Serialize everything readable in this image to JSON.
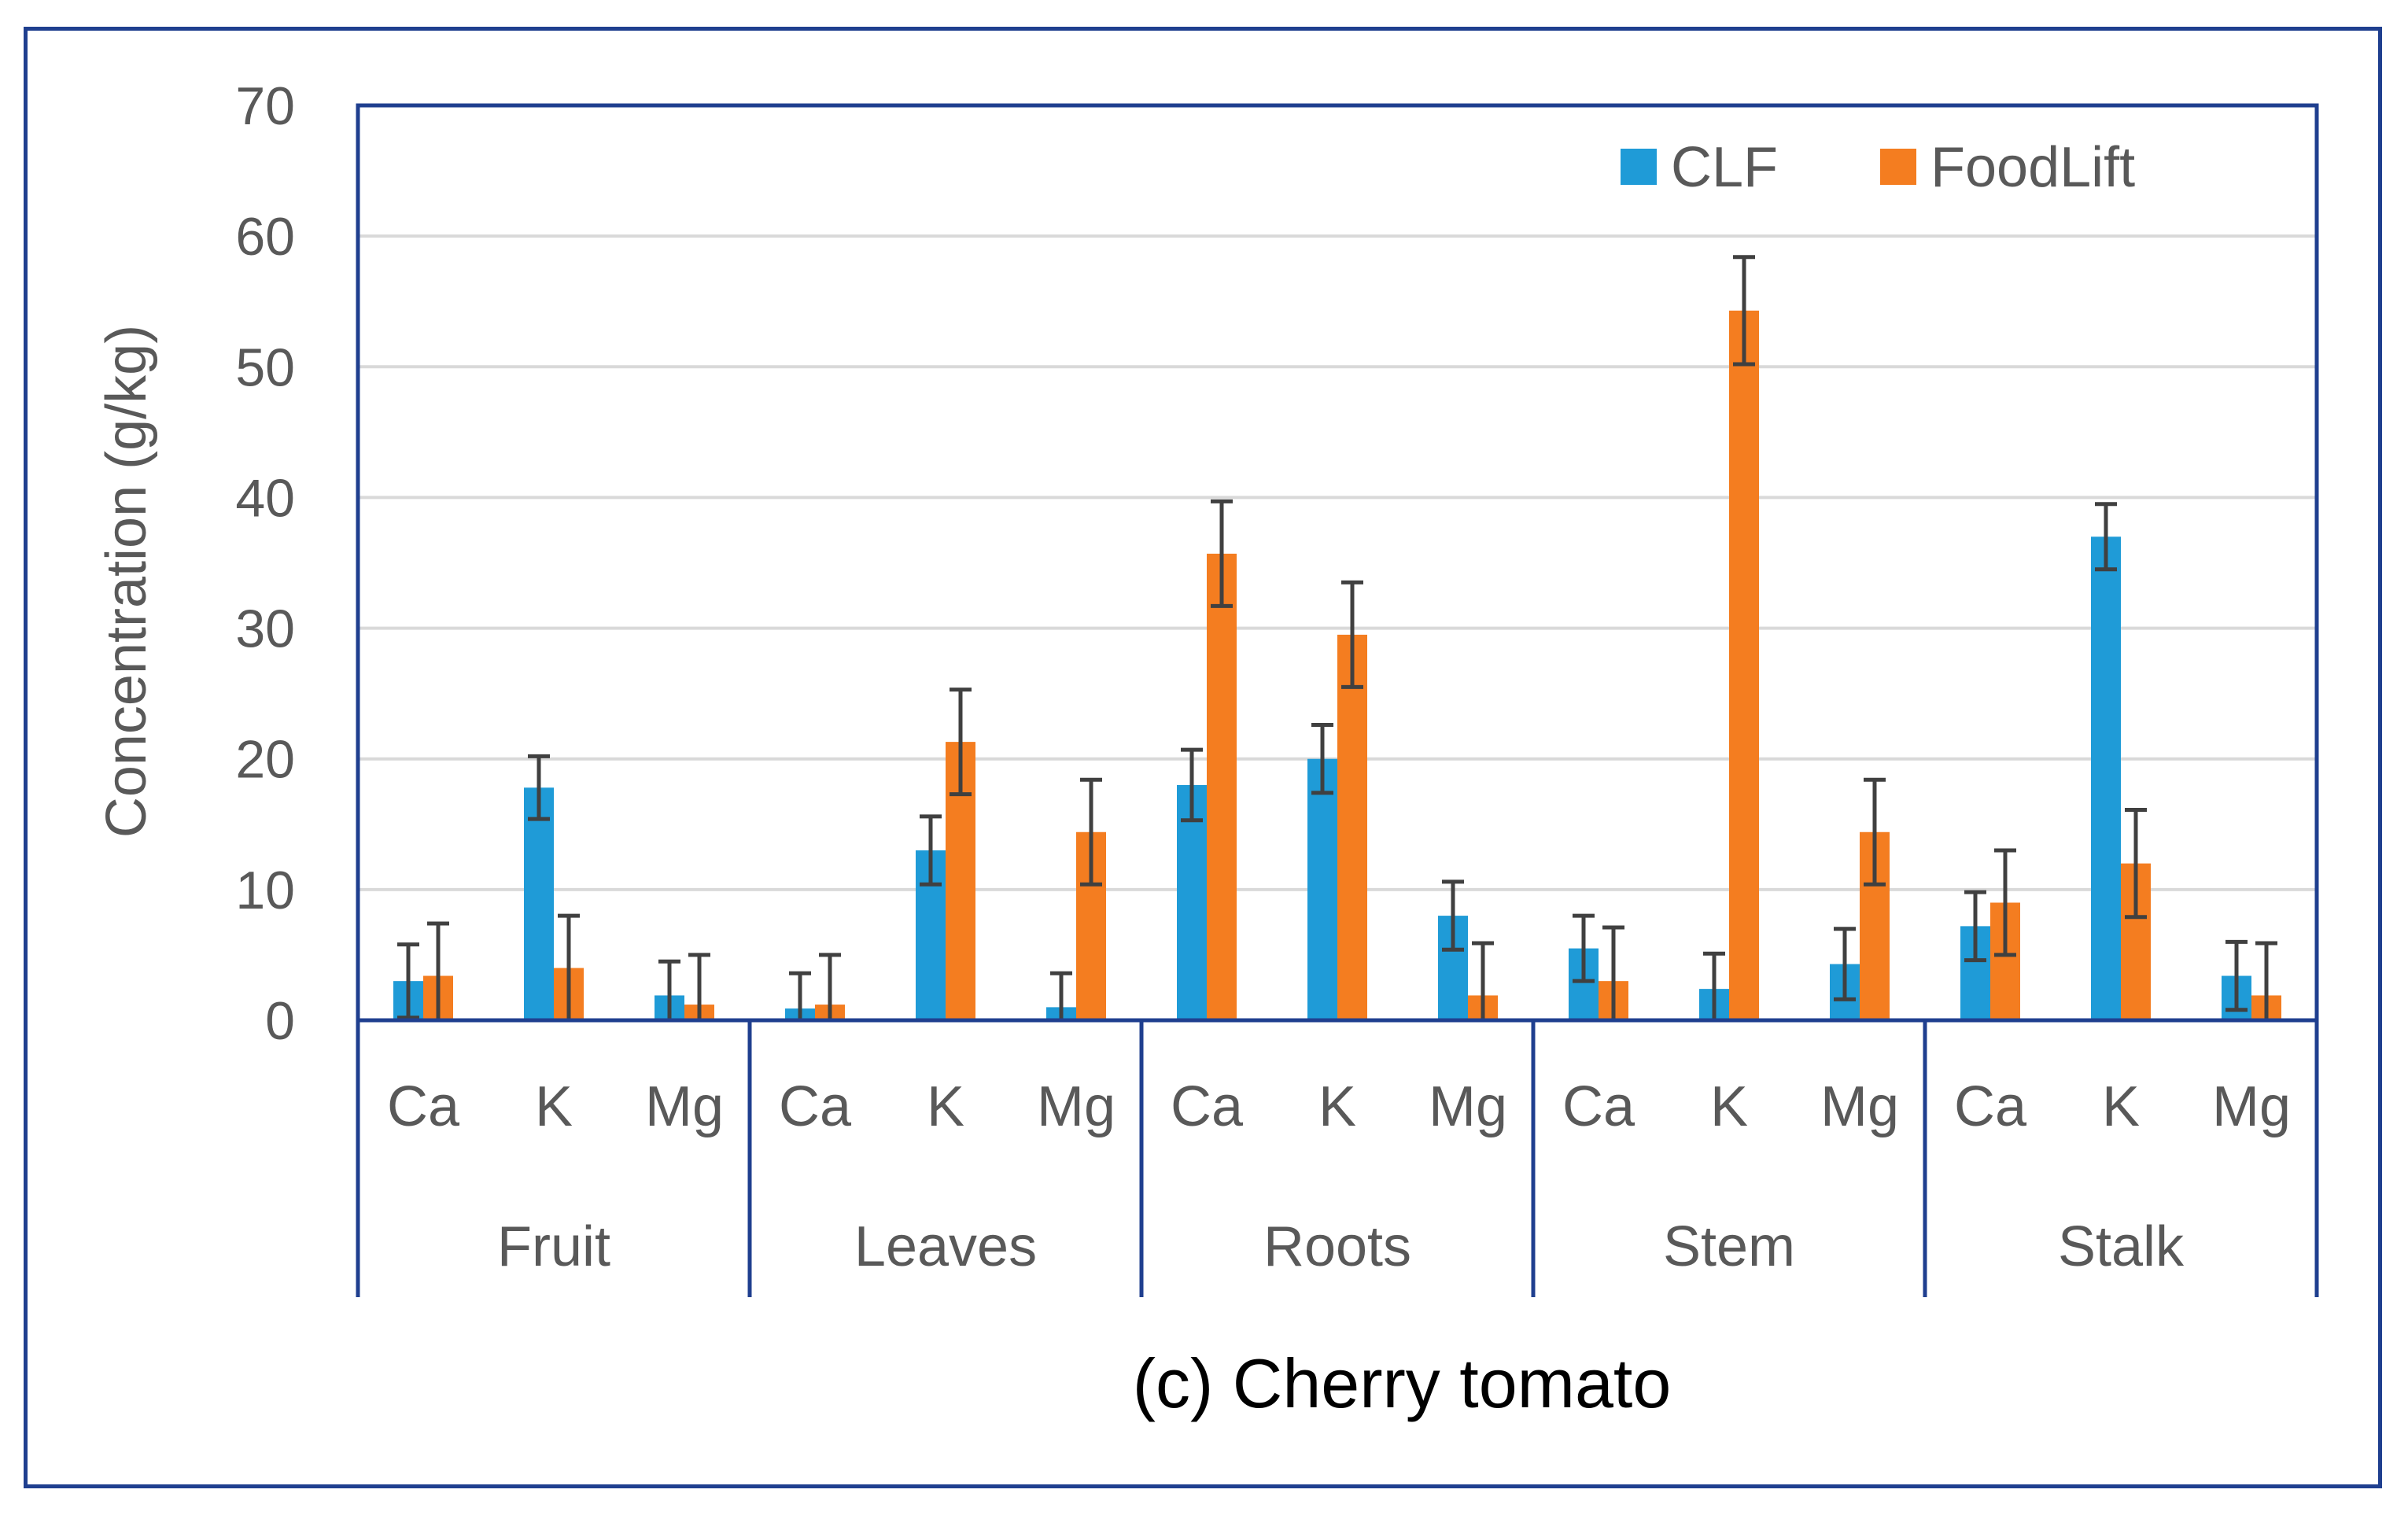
{
  "chart_data": {
    "type": "bar",
    "title": "(c) Cherry tomato",
    "xlabel": "",
    "ylabel": "Concentration (g/kg)",
    "ylim": [
      0,
      70
    ],
    "yticks": [
      0,
      10,
      20,
      30,
      40,
      50,
      60,
      70
    ],
    "grid": true,
    "legend_position": "top-right",
    "groups": [
      {
        "label": "Fruit",
        "categories": [
          "Ca",
          "K",
          "Mg"
        ]
      },
      {
        "label": "Leaves",
        "categories": [
          "Ca",
          "K",
          "Mg"
        ]
      },
      {
        "label": "Roots",
        "categories": [
          "Ca",
          "K",
          "Mg"
        ]
      },
      {
        "label": "Stem",
        "categories": [
          "Ca",
          "K",
          "Mg"
        ]
      },
      {
        "label": "Stalk",
        "categories": [
          "Ca",
          "K",
          "Mg"
        ]
      }
    ],
    "series": [
      {
        "name": "CLF",
        "color": "#1f9bd7",
        "values": [
          3.0,
          17.8,
          1.9,
          0.9,
          13.0,
          1.0,
          18.0,
          20.0,
          8.0,
          5.5,
          2.4,
          4.3,
          7.2,
          37.0,
          3.4
        ],
        "errors": [
          2.8,
          2.4,
          2.6,
          2.7,
          2.6,
          2.6,
          2.7,
          2.6,
          2.6,
          2.5,
          2.7,
          2.7,
          2.6,
          2.5,
          2.6
        ]
      },
      {
        "name": "FoodLift",
        "color": "#f47d20",
        "values": [
          3.4,
          4.0,
          1.2,
          1.2,
          21.3,
          14.4,
          35.7,
          29.5,
          1.9,
          3.0,
          54.3,
          14.4,
          9.0,
          12.0,
          1.9
        ],
        "errors": [
          4.0,
          4.0,
          3.8,
          3.8,
          4.0,
          4.0,
          4.0,
          4.0,
          4.0,
          4.1,
          4.1,
          4.0,
          4.0,
          4.1,
          4.0
        ]
      }
    ]
  },
  "colors": {
    "frame": "#1f3f8f",
    "axis": "#1f3f8f",
    "grid": "#d9d9d9",
    "error_bar": "#404040"
  }
}
